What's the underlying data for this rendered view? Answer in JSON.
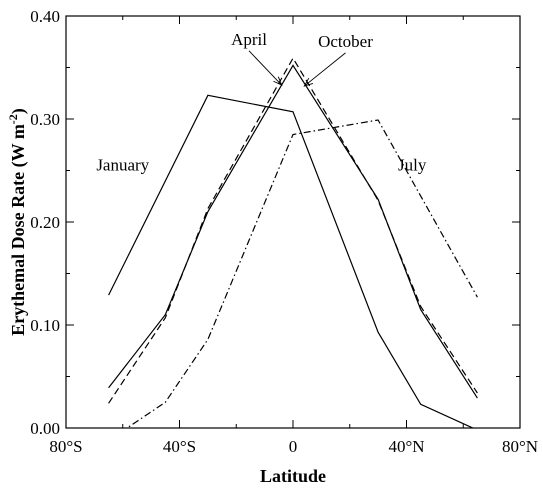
{
  "chart_data": {
    "type": "line",
    "title": "",
    "xlabel": "Latitude",
    "ylabel": "Erythemal Dose Rate (W m",
    "ylabel_sup": "-2",
    "ylabel_close": ")",
    "xlim": [
      -80,
      80
    ],
    "ylim": [
      0,
      0.4
    ],
    "x_ticks": [
      {
        "value": -80,
        "label": "80°S"
      },
      {
        "value": -40,
        "label": "40°S"
      },
      {
        "value": 0,
        "label": "0"
      },
      {
        "value": 40,
        "label": "40°N"
      },
      {
        "value": 80,
        "label": "80°N"
      }
    ],
    "y_ticks": [
      {
        "value": 0,
        "label": "0.00"
      },
      {
        "value": 0.1,
        "label": "0.10"
      },
      {
        "value": 0.2,
        "label": "0.20"
      },
      {
        "value": 0.3,
        "label": "0.30"
      },
      {
        "value": 0.4,
        "label": "0.40"
      }
    ],
    "grid": false,
    "series": [
      {
        "name": "January",
        "dash": "solid",
        "points": [
          [
            -65,
            0.129
          ],
          [
            -30,
            0.323
          ],
          [
            0,
            0.307
          ],
          [
            30,
            0.093
          ],
          [
            45,
            0.023
          ],
          [
            65,
            -0.002
          ]
        ]
      },
      {
        "name": "April",
        "dash": "solid",
        "points": [
          [
            -65,
            0.039
          ],
          [
            -45,
            0.11
          ],
          [
            -30,
            0.21
          ],
          [
            0,
            0.352
          ],
          [
            30,
            0.222
          ],
          [
            45,
            0.115
          ],
          [
            65,
            0.029
          ]
        ]
      },
      {
        "name": "October",
        "dash": "dashed",
        "points": [
          [
            -65,
            0.024
          ],
          [
            -45,
            0.107
          ],
          [
            -30,
            0.213
          ],
          [
            0,
            0.359
          ],
          [
            30,
            0.221
          ],
          [
            45,
            0.118
          ],
          [
            65,
            0.034
          ]
        ]
      },
      {
        "name": "July",
        "dash": "dashdot",
        "points": [
          [
            -65,
            -0.012
          ],
          [
            -45,
            0.025
          ],
          [
            -30,
            0.086
          ],
          [
            0,
            0.285
          ],
          [
            30,
            0.299
          ],
          [
            65,
            0.127
          ]
        ]
      }
    ],
    "annotations": [
      {
        "key": "january",
        "text": "January",
        "x": -60,
        "y": 0.25
      },
      {
        "key": "july",
        "text": "July",
        "x": 42,
        "y": 0.25
      },
      {
        "key": "april",
        "text": "April",
        "x": -15.5,
        "y": 0.372,
        "arrow_to": [
          -4,
          0.333
        ]
      },
      {
        "key": "october",
        "text": "October",
        "x": 18.5,
        "y": 0.37,
        "arrow_to": [
          4,
          0.332
        ]
      }
    ]
  }
}
